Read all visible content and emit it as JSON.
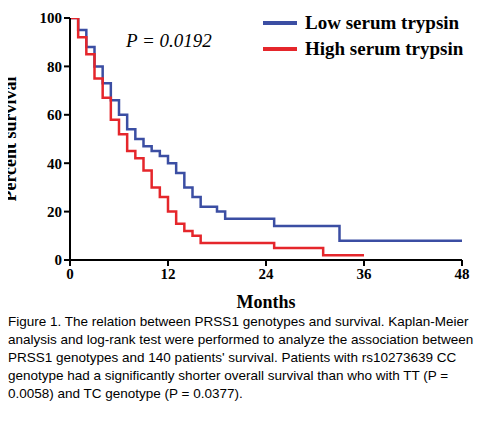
{
  "chart_data": {
    "type": "line",
    "x_label": "Months",
    "y_label": "Percent survival",
    "annotations": [
      "P = 0.0192"
    ],
    "caption": "Figure 1. The relation between PRSS1 genotypes and survival. Kaplan-Meier analysis and log-rank test were performed to analyze the association between PRSS1 genotypes and 140 patients' survival. Patients with rs10273639 CC genotype had a significantly shorter overall survival than who with TT (P = 0.0058) and TC genotype (P = 0.0377).",
    "xlim": [
      0,
      48
    ],
    "xticks": [
      0,
      12,
      24,
      36,
      48
    ],
    "ylim": [
      0,
      100
    ],
    "yticks": [
      0,
      20,
      40,
      60,
      80,
      100
    ],
    "grid": false,
    "legend": "upper right",
    "line_style": "step",
    "series": [
      {
        "name": "Low serum trypsin",
        "color": "#3b4ea3",
        "x": [
          0,
          1,
          2,
          3,
          4,
          5,
          6,
          7,
          8,
          9,
          10,
          11,
          12,
          13,
          14,
          15,
          16,
          18,
          19,
          25,
          33,
          48
        ],
        "values": [
          100,
          95,
          88,
          80,
          73,
          66,
          60,
          54,
          50,
          47,
          45,
          43,
          40,
          36,
          30,
          26,
          22,
          20,
          17,
          14,
          8,
          8
        ]
      },
      {
        "name": "High serum trypsin",
        "color": "#e5262b",
        "x": [
          0,
          1,
          2,
          3,
          4,
          5,
          6,
          7,
          8,
          9,
          10,
          11,
          12,
          13,
          14,
          15,
          16,
          25,
          31,
          36
        ],
        "values": [
          100,
          92,
          85,
          75,
          67,
          58,
          52,
          45,
          42,
          37,
          30,
          26,
          20,
          15,
          12,
          10,
          7,
          5,
          2,
          2
        ]
      }
    ]
  }
}
